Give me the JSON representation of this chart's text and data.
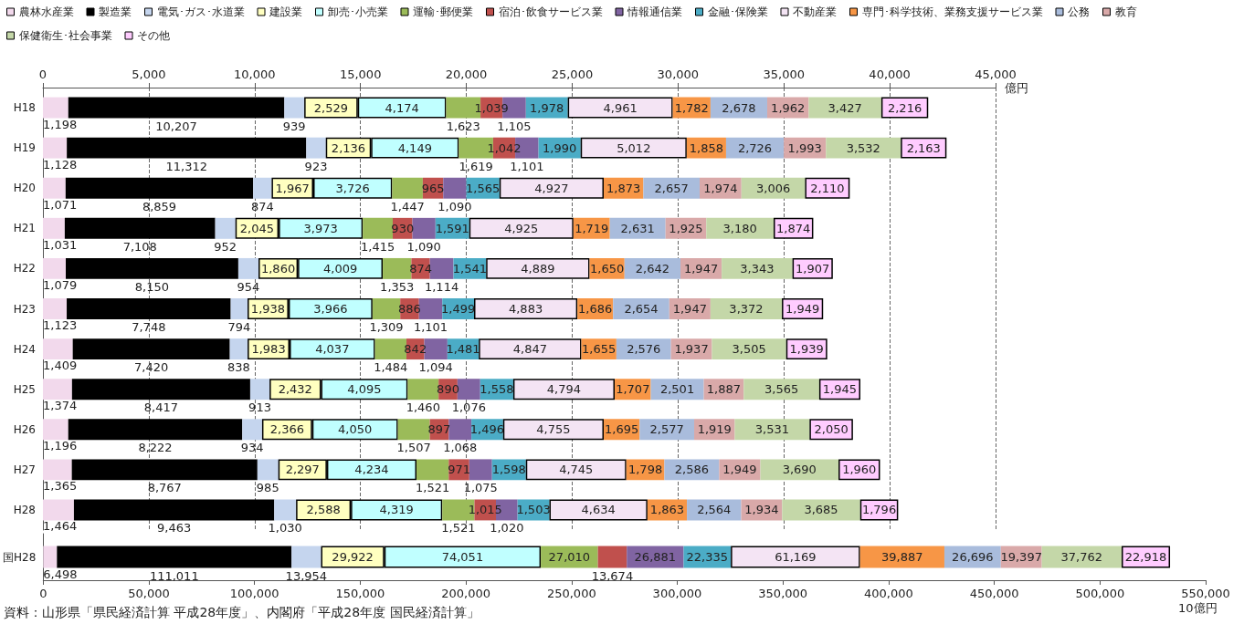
{
  "chart_data": {
    "type": "bar",
    "orientation": "horizontal",
    "stacked": true,
    "grid": "x",
    "legend": "top",
    "categories": [
      "H18",
      "H19",
      "H20",
      "H21",
      "H22",
      "H23",
      "H24",
      "H25",
      "H26",
      "H27",
      "H28",
      "国H28"
    ],
    "x2label": "億円",
    "x2lim": [
      0,
      45000
    ],
    "x2ticks": [
      {
        "value": 0,
        "label": "0"
      },
      {
        "value": 5000,
        "label": "5,000"
      },
      {
        "value": 10000,
        "label": "10,000"
      },
      {
        "value": 15000,
        "label": "15,000"
      },
      {
        "value": 20000,
        "label": "20,000"
      },
      {
        "value": 25000,
        "label": "25,000"
      },
      {
        "value": 30000,
        "label": "30,000"
      },
      {
        "value": 35000,
        "label": "35,000"
      },
      {
        "value": 40000,
        "label": "40,000"
      },
      {
        "value": 45000,
        "label": "45,000"
      }
    ],
    "xlabel": "10億円",
    "xlim": [
      0,
      550000
    ],
    "xticks": [
      {
        "value": 0,
        "label": "0"
      },
      {
        "value": 50000,
        "label": "50,000"
      },
      {
        "value": 100000,
        "label": "100,000"
      },
      {
        "value": 150000,
        "label": "150,000"
      },
      {
        "value": 200000,
        "label": "200,000"
      },
      {
        "value": 250000,
        "label": "250,000"
      },
      {
        "value": 300000,
        "label": "300,000"
      },
      {
        "value": 350000,
        "label": "350,000"
      },
      {
        "value": 400000,
        "label": "400,000"
      },
      {
        "value": 450000,
        "label": "450,000"
      },
      {
        "value": 500000,
        "label": "500,000"
      },
      {
        "value": 550000,
        "label": "550,000"
      }
    ],
    "annotations": [
      "資料：山形県「県民経済計算 平成28年度」、内閣府「平成28年度 国民経済計算」"
    ],
    "series": [
      {
        "name": "農林水産業",
        "color": "#f2d9ec",
        "axis": "x2",
        "values": [
          1198,
          1128,
          1071,
          1031,
          1079,
          1123,
          1409,
          1374,
          1196,
          1365,
          1464,
          null
        ],
        "value_labels": [
          "1,198",
          "1,128",
          "1,071",
          "1,031",
          "1,079",
          "1,123",
          "1,409",
          "1,374",
          "1,196",
          "1,365",
          "1,464",
          null
        ]
      },
      {
        "name": "製造業",
        "color": "#000000",
        "axis": "x2",
        "values": [
          10207,
          11312,
          8859,
          7108,
          8150,
          7748,
          7420,
          8417,
          8222,
          8767,
          9463,
          null
        ],
        "value_labels": [
          "10,207",
          "11,312",
          "8,859",
          "7,108",
          "8,150",
          "7,748",
          "7,420",
          "8,417",
          "8,222",
          "8,767",
          "9,463",
          null
        ]
      },
      {
        "name": "電気･ガス･水道業",
        "color": "#c5d5ee",
        "axis": "x2",
        "values": [
          939,
          923,
          874,
          952,
          954,
          794,
          838,
          913,
          934,
          985,
          1030,
          null
        ],
        "value_labels": [
          "939",
          "923",
          "874",
          "952",
          "954",
          "794",
          "838",
          "913",
          "934",
          "985",
          "1,030",
          null
        ]
      },
      {
        "name": "建設業",
        "color": "#ffffc0",
        "axis": "x2",
        "values": [
          2529,
          2136,
          1967,
          2045,
          1860,
          1938,
          1983,
          2432,
          2366,
          2297,
          2588,
          null
        ],
        "value_labels": [
          "2,529",
          "2,136",
          "1,967",
          "2,045",
          "1,860",
          "1,938",
          "1,983",
          "2,432",
          "2,366",
          "2,297",
          "2,588",
          null
        ]
      },
      {
        "name": "卸売･小売業",
        "color": "#c0ffff",
        "axis": "x2",
        "values": [
          4174,
          4149,
          3726,
          3973,
          4009,
          3966,
          4037,
          4095,
          4050,
          4234,
          4319,
          null
        ],
        "value_labels": [
          "4,174",
          "4,149",
          "3,726",
          "3,973",
          "4,009",
          "3,966",
          "4,037",
          "4,095",
          "4,050",
          "4,234",
          "4,319",
          null
        ]
      },
      {
        "name": "運輸･郵便業",
        "color": "#9bbb59",
        "axis": "x2",
        "values": [
          1623,
          1619,
          1447,
          1415,
          1353,
          1309,
          1484,
          1460,
          1507,
          1521,
          1521,
          null
        ],
        "value_labels": [
          "1,623",
          "1,619",
          "1,447",
          "1,415",
          "1,353",
          "1,309",
          "1,484",
          "1,460",
          "1,507",
          "1,521",
          "1,521",
          null
        ]
      },
      {
        "name": "宿泊･飲食サービス業",
        "color": "#c0504d",
        "axis": "x2",
        "values": [
          1039,
          1042,
          965,
          930,
          874,
          886,
          842,
          890,
          897,
          971,
          1015,
          null
        ],
        "value_labels": [
          "1,039",
          "1,042",
          "965",
          "930",
          "874",
          "886",
          "842",
          "890",
          "897",
          "971",
          "1,015",
          null
        ]
      },
      {
        "name": "情報通信業",
        "color": "#8064a2",
        "axis": "x2",
        "values": [
          1105,
          1101,
          1090,
          1090,
          1114,
          1101,
          1094,
          1076,
          1068,
          1075,
          1020,
          null
        ],
        "value_labels": [
          "1,105",
          "1,101",
          "1,090",
          "1,090",
          "1,114",
          "1,101",
          "1,094",
          "1,076",
          "1,068",
          "1,075",
          "1,020",
          null
        ]
      },
      {
        "name": "金融･保険業",
        "color": "#4bacc6",
        "axis": "x2",
        "values": [
          1978,
          1990,
          1565,
          1591,
          1541,
          1499,
          1481,
          1558,
          1496,
          1598,
          1503,
          null
        ],
        "value_labels": [
          "1,978",
          "1,990",
          "1,565",
          "1,591",
          "1,541",
          "1,499",
          "1,481",
          "1,558",
          "1,496",
          "1,598",
          "1,503",
          null
        ]
      },
      {
        "name": "不動産業",
        "color": "#f4e4f4",
        "axis": "x2",
        "values": [
          4961,
          5012,
          4927,
          4925,
          4889,
          4883,
          4847,
          4794,
          4755,
          4745,
          4634,
          null
        ],
        "value_labels": [
          "4,961",
          "5,012",
          "4,927",
          "4,925",
          "4,889",
          "4,883",
          "4,847",
          "4,794",
          "4,755",
          "4,745",
          "4,634",
          null
        ]
      },
      {
        "name": "専門･科学技術、業務支援サービス業",
        "color": "#f79646",
        "axis": "x2",
        "values": [
          1782,
          1858,
          1873,
          1719,
          1650,
          1686,
          1655,
          1707,
          1695,
          1798,
          1863,
          null
        ],
        "value_labels": [
          "1,782",
          "1,858",
          "1,873",
          "1,719",
          "1,650",
          "1,686",
          "1,655",
          "1,707",
          "1,695",
          "1,798",
          "1,863",
          null
        ]
      },
      {
        "name": "公務",
        "color": "#a9bcdc",
        "axis": "x2",
        "values": [
          2678,
          2726,
          2657,
          2631,
          2642,
          2654,
          2576,
          2501,
          2577,
          2586,
          2564,
          null
        ],
        "value_labels": [
          "2,678",
          "2,726",
          "2,657",
          "2,631",
          "2,642",
          "2,654",
          "2,576",
          "2,501",
          "2,577",
          "2,586",
          "2,564",
          null
        ]
      },
      {
        "name": "教育",
        "color": "#d9a9a9",
        "axis": "x2",
        "values": [
          1962,
          1993,
          1974,
          1925,
          1947,
          1947,
          1937,
          1887,
          1919,
          1949,
          1934,
          null
        ],
        "value_labels": [
          "1,962",
          "1,993",
          "1,974",
          "1,925",
          "1,947",
          "1,947",
          "1,937",
          "1,887",
          "1,919",
          "1,949",
          "1,934",
          null
        ]
      },
      {
        "name": "保健衛生･社会事業",
        "color": "#c4d7a8",
        "axis": "x2",
        "values": [
          3427,
          3532,
          3006,
          3180,
          3343,
          3372,
          3505,
          3565,
          3531,
          3690,
          3685,
          null
        ],
        "value_labels": [
          "3,427",
          "3,532",
          "3,006",
          "3,180",
          "3,343",
          "3,372",
          "3,505",
          "3,565",
          "3,531",
          "3,690",
          "3,685",
          null
        ]
      },
      {
        "name": "その他",
        "color": "#ffccff",
        "axis": "x2",
        "values": [
          2216,
          2163,
          2110,
          1874,
          1907,
          1949,
          1939,
          1945,
          2050,
          1960,
          1796,
          null
        ],
        "value_labels": [
          "2,216",
          "2,163",
          "2,110",
          "1,874",
          "1,907",
          "1,949",
          "1,939",
          "1,945",
          "2,050",
          "1,960",
          "1,796",
          null
        ]
      },
      {
        "color": "#f2d9ec",
        "values": [
          null,
          null,
          null,
          null,
          null,
          null,
          null,
          null,
          null,
          null,
          null,
          6498
        ],
        "value_labels": [
          null,
          null,
          null,
          null,
          null,
          null,
          null,
          null,
          null,
          null,
          null,
          "6,498"
        ]
      },
      {
        "color": "#000000",
        "values": [
          null,
          null,
          null,
          null,
          null,
          null,
          null,
          null,
          null,
          null,
          null,
          111011
        ],
        "value_labels": [
          null,
          null,
          null,
          null,
          null,
          null,
          null,
          null,
          null,
          null,
          null,
          "111,011"
        ]
      },
      {
        "color": "#c5d5ee",
        "values": [
          null,
          null,
          null,
          null,
          null,
          null,
          null,
          null,
          null,
          null,
          null,
          13954
        ],
        "value_labels": [
          null,
          null,
          null,
          null,
          null,
          null,
          null,
          null,
          null,
          null,
          null,
          "13,954"
        ]
      },
      {
        "color": "#ffffc0",
        "values": [
          null,
          null,
          null,
          null,
          null,
          null,
          null,
          null,
          null,
          null,
          null,
          29922
        ],
        "value_labels": [
          null,
          null,
          null,
          null,
          null,
          null,
          null,
          null,
          null,
          null,
          null,
          "29,922"
        ]
      },
      {
        "color": "#c0ffff",
        "values": [
          null,
          null,
          null,
          null,
          null,
          null,
          null,
          null,
          null,
          null,
          null,
          74051
        ],
        "value_labels": [
          null,
          null,
          null,
          null,
          null,
          null,
          null,
          null,
          null,
          null,
          null,
          "74,051"
        ]
      },
      {
        "color": "#9bbb59",
        "values": [
          null,
          null,
          null,
          null,
          null,
          null,
          null,
          null,
          null,
          null,
          null,
          27010
        ],
        "value_labels": [
          null,
          null,
          null,
          null,
          null,
          null,
          null,
          null,
          null,
          null,
          null,
          "27,010"
        ]
      },
      {
        "color": "#c0504d",
        "values": [
          null,
          null,
          null,
          null,
          null,
          null,
          null,
          null,
          null,
          null,
          null,
          13674
        ],
        "value_labels": [
          null,
          null,
          null,
          null,
          null,
          null,
          null,
          null,
          null,
          null,
          null,
          "13,674"
        ]
      },
      {
        "color": "#8064a2",
        "values": [
          null,
          null,
          null,
          null,
          null,
          null,
          null,
          null,
          null,
          null,
          null,
          26881
        ],
        "value_labels": [
          null,
          null,
          null,
          null,
          null,
          null,
          null,
          null,
          null,
          null,
          null,
          "26,881"
        ]
      },
      {
        "color": "#4bacc6",
        "values": [
          null,
          null,
          null,
          null,
          null,
          null,
          null,
          null,
          null,
          null,
          null,
          22335
        ],
        "value_labels": [
          null,
          null,
          null,
          null,
          null,
          null,
          null,
          null,
          null,
          null,
          null,
          "22,335"
        ]
      },
      {
        "color": "#f4e4f4",
        "values": [
          null,
          null,
          null,
          null,
          null,
          null,
          null,
          null,
          null,
          null,
          null,
          61169
        ],
        "value_labels": [
          null,
          null,
          null,
          null,
          null,
          null,
          null,
          null,
          null,
          null,
          null,
          "61,169"
        ]
      },
      {
        "color": "#f79646",
        "values": [
          null,
          null,
          null,
          null,
          null,
          null,
          null,
          null,
          null,
          null,
          null,
          39887
        ],
        "value_labels": [
          null,
          null,
          null,
          null,
          null,
          null,
          null,
          null,
          null,
          null,
          null,
          "39,887"
        ]
      },
      {
        "color": "#a9bcdc",
        "values": [
          null,
          null,
          null,
          null,
          null,
          null,
          null,
          null,
          null,
          null,
          null,
          26696
        ],
        "value_labels": [
          null,
          null,
          null,
          null,
          null,
          null,
          null,
          null,
          null,
          null,
          null,
          "26,696"
        ]
      },
      {
        "color": "#d9a9a9",
        "values": [
          null,
          null,
          null,
          null,
          null,
          null,
          null,
          null,
          null,
          null,
          null,
          19397
        ],
        "value_labels": [
          null,
          null,
          null,
          null,
          null,
          null,
          null,
          null,
          null,
          null,
          null,
          "19,397"
        ]
      },
      {
        "color": "#c4d7a8",
        "values": [
          null,
          null,
          null,
          null,
          null,
          null,
          null,
          null,
          null,
          null,
          null,
          37762
        ],
        "value_labels": [
          null,
          null,
          null,
          null,
          null,
          null,
          null,
          null,
          null,
          null,
          null,
          "37,762"
        ]
      },
      {
        "color": "#ffccff",
        "values": [
          null,
          null,
          null,
          null,
          null,
          null,
          null,
          null,
          null,
          null,
          null,
          22918
        ],
        "value_labels": [
          null,
          null,
          null,
          null,
          null,
          null,
          null,
          null,
          null,
          null,
          null,
          "22,918"
        ]
      }
    ]
  }
}
